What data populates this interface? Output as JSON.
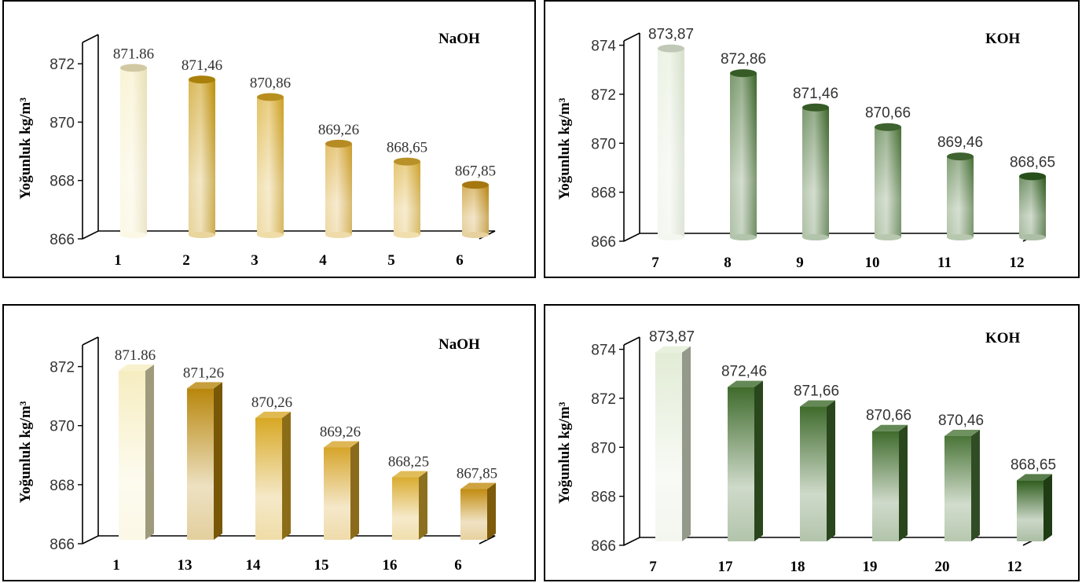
{
  "chart_data": [
    {
      "type": "bar",
      "shape": "cylinder",
      "tag": "NaOH",
      "ylabel": "Yoğunluk kg/m³",
      "ylim": [
        866,
        873
      ],
      "yticks": [
        866,
        868,
        870,
        872
      ],
      "categories": [
        "1",
        "2",
        "3",
        "4",
        "5",
        "6"
      ],
      "values": [
        871.86,
        871.46,
        870.86,
        869.26,
        868.65,
        867.85
      ],
      "value_labels": [
        "871.86",
        "871,46",
        "870,86",
        "869,26",
        "868,65",
        "867,85"
      ],
      "bar_colors": [
        "#f6edc0",
        "#c7970a",
        "#d8a824",
        "#d6a42a",
        "#d9ac30",
        "#c28c10"
      ],
      "label_font": "serif",
      "grid": false
    },
    {
      "type": "bar",
      "shape": "cylinder",
      "tag": "KOH",
      "ylabel": "Yoğunluk kg/m³",
      "ylim": [
        866,
        874.5
      ],
      "yticks": [
        866,
        868,
        870,
        872,
        874
      ],
      "categories": [
        "7",
        "8",
        "9",
        "10",
        "11",
        "12"
      ],
      "values": [
        873.87,
        872.86,
        871.46,
        870.66,
        869.46,
        868.65
      ],
      "value_labels": [
        "873,87",
        "872,86",
        "871,46",
        "870,66",
        "869,46",
        "868,65"
      ],
      "bar_colors": [
        "#e2ecd6",
        "#3f6b2c",
        "#3f6b2c",
        "#4a7538",
        "#4a7538",
        "#2f5d1e"
      ],
      "label_font": "sans",
      "grid": false
    },
    {
      "type": "bar",
      "shape": "box",
      "tag": "NaOH",
      "ylabel": "Yoğunluk kg/m³",
      "ylim": [
        866,
        873
      ],
      "yticks": [
        866,
        868,
        870,
        872
      ],
      "categories": [
        "1",
        "13",
        "14",
        "15",
        "16",
        "6"
      ],
      "values": [
        871.86,
        871.26,
        870.26,
        869.26,
        868.25,
        867.85
      ],
      "value_labels": [
        "871.86",
        "871,26",
        "870,26",
        "869,26",
        "868,25",
        "867,85"
      ],
      "bar_colors": [
        "#f6edc0",
        "#b8860b",
        "#d8a824",
        "#d6a42a",
        "#d9ac30",
        "#c28c10"
      ],
      "label_font": "serif",
      "grid": false
    },
    {
      "type": "bar",
      "shape": "box",
      "tag": "KOH",
      "ylabel": "Yoğunluk kg/m³",
      "ylim": [
        866,
        874.5
      ],
      "yticks": [
        866,
        868,
        870,
        872,
        874
      ],
      "categories": [
        "7",
        "17",
        "18",
        "19",
        "20",
        "12"
      ],
      "values": [
        873.87,
        872.46,
        871.66,
        870.66,
        870.46,
        868.65
      ],
      "value_labels": [
        "873,87",
        "872,46",
        "871,66",
        "870,66",
        "870,46",
        "868,65"
      ],
      "bar_colors": [
        "#e2ecd6",
        "#3f6b2c",
        "#3f6b2c",
        "#3f6b2c",
        "#4a7538",
        "#2f5d1e"
      ],
      "label_font": "sans",
      "grid": false
    }
  ]
}
